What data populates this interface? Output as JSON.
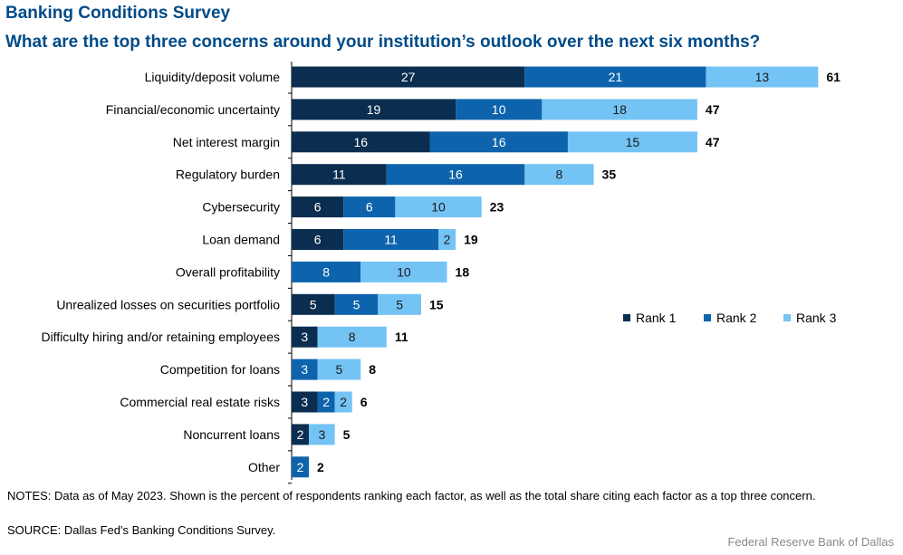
{
  "header": {
    "title": "Banking Conditions Survey",
    "subtitle": "What are the top three concerns around your institution’s outlook over the next six months?"
  },
  "chart_data": {
    "type": "bar",
    "orientation": "horizontal",
    "stacked": true,
    "title": "What are the top three concerns around your institution’s outlook over the next six months?",
    "categories": [
      "Liquidity/deposit volume",
      "Financial/economic uncertainty",
      "Net interest margin",
      "Regulatory burden",
      "Cybersecurity",
      "Loan demand",
      "Overall profitability",
      "Unrealized losses on securities portfolio",
      "Difficulty hiring and/or retaining employees",
      "Competition for loans",
      "Commercial real estate risks",
      "Noncurrent loans",
      "Other"
    ],
    "series": [
      {
        "name": "Rank 1",
        "color": "#0b2d4f",
        "values": [
          27,
          19,
          16,
          11,
          6,
          6,
          0,
          5,
          3,
          0,
          3,
          2,
          0
        ]
      },
      {
        "name": "Rank 2",
        "color": "#0d64ac",
        "values": [
          21,
          10,
          16,
          16,
          6,
          11,
          8,
          5,
          0,
          3,
          2,
          0,
          2
        ]
      },
      {
        "name": "Rank 3",
        "color": "#74c3f5",
        "values": [
          13,
          18,
          15,
          8,
          10,
          2,
          10,
          5,
          8,
          5,
          2,
          3,
          0
        ]
      }
    ],
    "totals": [
      61,
      47,
      47,
      35,
      23,
      19,
      18,
      15,
      11,
      8,
      6,
      5,
      2
    ],
    "legend_position": "right",
    "grid": false
  },
  "notes": "NOTES: Data as of May 2023. Shown is the percent of respondents ranking each factor, as well as the total share citing each factor as a top three concern.",
  "source": "SOURCE: Dallas Fed's Banking Conditions Survey.",
  "credit": "Federal Reserve Bank of Dallas"
}
